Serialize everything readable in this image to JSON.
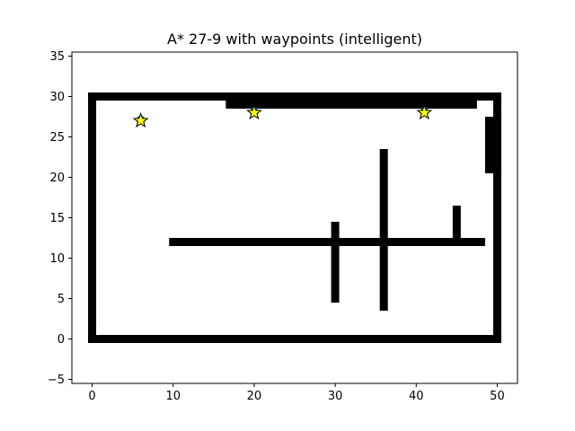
{
  "chart_data": {
    "type": "scatter",
    "title": "A* 27-9 with waypoints (intelligent)",
    "xlabel": "",
    "ylabel": "",
    "xlim": [
      -2.5,
      52.5
    ],
    "ylim": [
      -5.5,
      35.5
    ],
    "xticks": [
      0,
      10,
      20,
      30,
      40,
      50
    ],
    "yticks": [
      -5,
      0,
      5,
      10,
      15,
      20,
      25,
      30,
      35
    ],
    "grid": false,
    "legend": "none",
    "obstacle_color": "#000000",
    "waypoint_fill": "#ffff00",
    "waypoint_edge": "#000000",
    "hidden_marker_color": "#1f77b4",
    "obstacles": [
      {
        "name": "outer-top-wall",
        "x": [
          0,
          50
        ],
        "y": [
          30,
          30
        ]
      },
      {
        "name": "outer-bottom-wall",
        "x": [
          0,
          50
        ],
        "y": [
          0,
          0
        ]
      },
      {
        "name": "outer-left-wall",
        "x": [
          0,
          0
        ],
        "y": [
          0,
          30
        ]
      },
      {
        "name": "outer-right-wall",
        "x": [
          50,
          50
        ],
        "y": [
          0,
          30
        ]
      },
      {
        "name": "top-inner-wall",
        "x": [
          17,
          47
        ],
        "y": [
          29,
          29
        ]
      },
      {
        "name": "right-upper-block",
        "x": [
          49,
          50
        ],
        "y": [
          21,
          27
        ]
      },
      {
        "name": "middle-horizontal-wall",
        "x": [
          10,
          48
        ],
        "y": [
          12,
          12
        ]
      },
      {
        "name": "vertical-wall-x30",
        "x": [
          30,
          30
        ],
        "y": [
          5,
          14
        ]
      },
      {
        "name": "vertical-wall-x36",
        "x": [
          36,
          36
        ],
        "y": [
          4,
          23
        ]
      },
      {
        "name": "short-vertical-wall-x45",
        "x": [
          45,
          45
        ],
        "y": [
          12,
          16
        ]
      }
    ],
    "waypoints": [
      {
        "x": 6,
        "y": 27
      },
      {
        "x": 20,
        "y": 28
      },
      {
        "x": 41,
        "y": 28
      }
    ]
  }
}
